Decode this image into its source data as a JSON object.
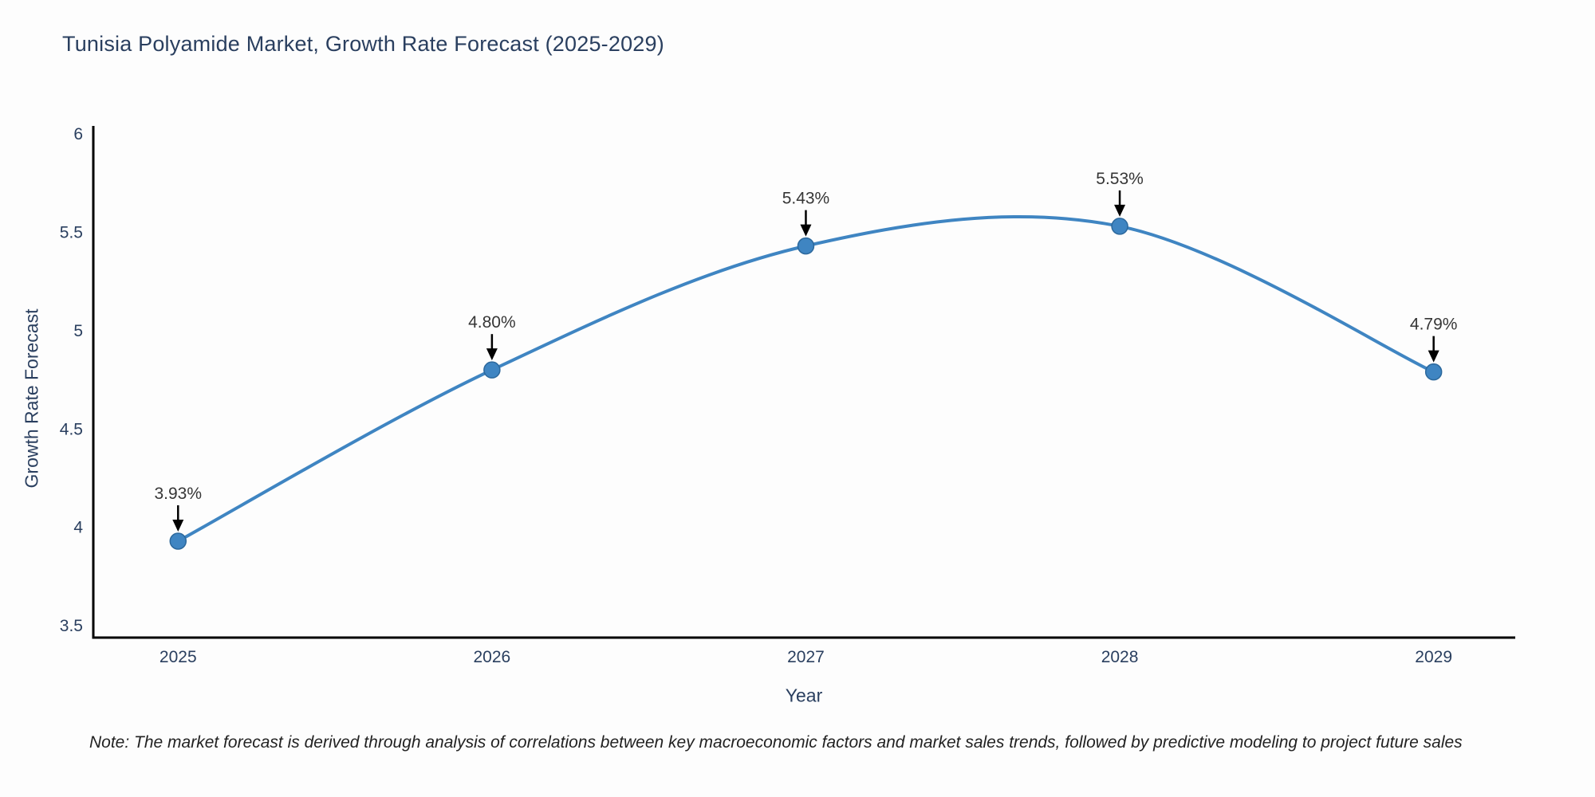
{
  "title": "Tunisia Polyamide Market, Growth Rate Forecast (2025-2029)",
  "note": "Note: The market forecast is derived through analysis of correlations between key macroeconomic factors and market sales trends, followed by predictive modeling to project future sales",
  "chart_data": {
    "type": "line",
    "title": "Tunisia Polyamide Market, Growth Rate Forecast (2025-2029)",
    "xlabel": "Year",
    "ylabel": "Growth Rate Forecast",
    "x": [
      2025,
      2026,
      2027,
      2028,
      2029
    ],
    "y": [
      3.93,
      4.8,
      5.43,
      5.53,
      4.79
    ],
    "point_labels": [
      "3.93%",
      "4.80%",
      "5.43%",
      "5.53%",
      "4.79%"
    ],
    "x_tick_labels": [
      "2025",
      "2026",
      "2027",
      "2028",
      "2029"
    ],
    "y_tick_values": [
      3.5,
      4,
      4.5,
      5,
      5.5,
      6
    ],
    "y_tick_labels": [
      "3.5",
      "4",
      "4.5",
      "5",
      "5.5",
      "6"
    ],
    "xlim": [
      2024.73,
      2029.26
    ],
    "ylim": [
      3.44,
      6.04
    ],
    "line_shape": "spline",
    "grid": false,
    "legend": null,
    "annotation_arrows": true,
    "colors": {
      "line": "#3f85c2",
      "marker": "#3f85c2",
      "marker_edge": "#2c689c",
      "axis": "#000000",
      "tick_text": "#2a3f5f",
      "annotation_text": "#363636",
      "arrow": "#000000",
      "title_text": "#2a3f5f"
    }
  }
}
